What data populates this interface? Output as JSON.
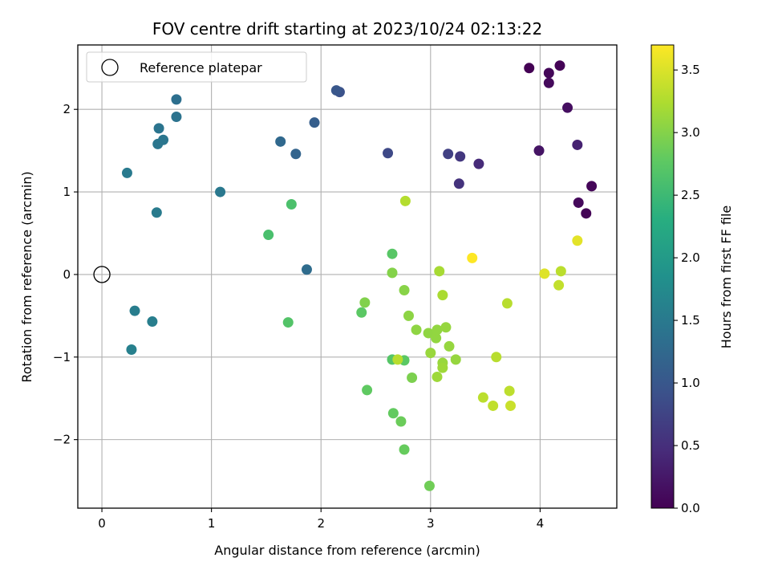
{
  "chart_data": {
    "type": "scatter",
    "title": "FOV centre drift starting at 2023/10/24 02:13:22",
    "xlabel": "Angular distance from reference (arcmin)",
    "ylabel": "Rotation from reference (arcmin)",
    "xlim": [
      -0.22,
      4.7
    ],
    "ylim": [
      -2.83,
      2.78
    ],
    "xticks": [
      0,
      1,
      2,
      3,
      4
    ],
    "yticks": [
      -2,
      -1,
      0,
      1,
      2
    ],
    "grid": true,
    "legend": {
      "position": "upper-left",
      "entries": [
        {
          "label": "Reference platepar",
          "marker": "open-circle",
          "x": 0,
          "y": 0
        }
      ]
    },
    "colorbar": {
      "label": "Hours from first FF file",
      "colormap": "viridis",
      "range": [
        0.0,
        3.7
      ],
      "ticks": [
        0.0,
        0.5,
        1.0,
        1.5,
        2.0,
        2.5,
        3.0,
        3.5
      ]
    },
    "points": [
      {
        "x": 3.9,
        "y": 2.5,
        "h": 0.0
      },
      {
        "x": 4.18,
        "y": 2.53,
        "h": 0.02
      },
      {
        "x": 4.08,
        "y": 2.44,
        "h": 0.06
      },
      {
        "x": 4.08,
        "y": 2.32,
        "h": 0.1
      },
      {
        "x": 4.25,
        "y": 2.02,
        "h": 0.14
      },
      {
        "x": 4.47,
        "y": 1.07,
        "h": 0.05
      },
      {
        "x": 4.42,
        "y": 0.74,
        "h": 0.03
      },
      {
        "x": 4.35,
        "y": 0.87,
        "h": 0.09
      },
      {
        "x": 3.99,
        "y": 1.5,
        "h": 0.2
      },
      {
        "x": 4.34,
        "y": 1.57,
        "h": 0.35
      },
      {
        "x": 3.44,
        "y": 1.34,
        "h": 0.45
      },
      {
        "x": 3.26,
        "y": 1.1,
        "h": 0.55
      },
      {
        "x": 3.27,
        "y": 1.43,
        "h": 0.6
      },
      {
        "x": 3.16,
        "y": 1.46,
        "h": 0.7
      },
      {
        "x": 2.61,
        "y": 1.47,
        "h": 0.82
      },
      {
        "x": 2.17,
        "y": 2.21,
        "h": 0.92
      },
      {
        "x": 2.14,
        "y": 2.23,
        "h": 1.0
      },
      {
        "x": 1.94,
        "y": 1.84,
        "h": 1.1
      },
      {
        "x": 1.77,
        "y": 1.46,
        "h": 1.18
      },
      {
        "x": 1.63,
        "y": 1.61,
        "h": 1.25
      },
      {
        "x": 1.87,
        "y": 0.06,
        "h": 1.3
      },
      {
        "x": 0.68,
        "y": 2.12,
        "h": 1.35
      },
      {
        "x": 0.68,
        "y": 1.91,
        "h": 1.4
      },
      {
        "x": 0.52,
        "y": 1.77,
        "h": 1.42
      },
      {
        "x": 0.56,
        "y": 1.63,
        "h": 1.45
      },
      {
        "x": 0.51,
        "y": 1.58,
        "h": 1.45
      },
      {
        "x": 0.23,
        "y": 1.23,
        "h": 1.5
      },
      {
        "x": 1.08,
        "y": 1.0,
        "h": 1.48
      },
      {
        "x": 0.5,
        "y": 0.75,
        "h": 1.52
      },
      {
        "x": 0.3,
        "y": -0.44,
        "h": 1.55
      },
      {
        "x": 0.46,
        "y": -0.57,
        "h": 1.57
      },
      {
        "x": 0.27,
        "y": -0.91,
        "h": 1.6
      },
      {
        "x": 1.52,
        "y": 0.48,
        "h": 2.6
      },
      {
        "x": 1.73,
        "y": 0.85,
        "h": 2.62
      },
      {
        "x": 1.7,
        "y": -0.58,
        "h": 2.68
      },
      {
        "x": 2.65,
        "y": 0.25,
        "h": 2.72
      },
      {
        "x": 2.37,
        "y": -0.46,
        "h": 2.75
      },
      {
        "x": 2.42,
        "y": -1.4,
        "h": 2.78
      },
      {
        "x": 2.66,
        "y": -1.68,
        "h": 2.8
      },
      {
        "x": 2.73,
        "y": -1.78,
        "h": 2.85
      },
      {
        "x": 2.76,
        "y": -2.12,
        "h": 2.82
      },
      {
        "x": 2.99,
        "y": -2.56,
        "h": 2.88
      },
      {
        "x": 2.65,
        "y": -1.03,
        "h": 2.7
      },
      {
        "x": 2.76,
        "y": -1.04,
        "h": 2.75
      },
      {
        "x": 2.83,
        "y": -1.25,
        "h": 2.95
      },
      {
        "x": 2.4,
        "y": -0.34,
        "h": 2.98
      },
      {
        "x": 2.65,
        "y": 0.02,
        "h": 3.0
      },
      {
        "x": 2.76,
        "y": -0.19,
        "h": 3.02
      },
      {
        "x": 2.8,
        "y": -0.5,
        "h": 3.05
      },
      {
        "x": 2.87,
        "y": -0.67,
        "h": 3.06
      },
      {
        "x": 2.98,
        "y": -0.71,
        "h": 3.07
      },
      {
        "x": 3.05,
        "y": -0.77,
        "h": 3.08
      },
      {
        "x": 3.06,
        "y": -0.67,
        "h": 3.08
      },
      {
        "x": 3.14,
        "y": -0.64,
        "h": 3.1
      },
      {
        "x": 3.17,
        "y": -0.87,
        "h": 3.1
      },
      {
        "x": 3.0,
        "y": -0.95,
        "h": 3.12
      },
      {
        "x": 3.11,
        "y": -1.07,
        "h": 3.12
      },
      {
        "x": 3.11,
        "y": -1.13,
        "h": 3.15
      },
      {
        "x": 3.06,
        "y": -1.24,
        "h": 3.15
      },
      {
        "x": 2.7,
        "y": -1.03,
        "h": 3.3
      },
      {
        "x": 3.23,
        "y": -1.03,
        "h": 3.1
      },
      {
        "x": 3.08,
        "y": 0.04,
        "h": 3.2
      },
      {
        "x": 3.11,
        "y": -0.25,
        "h": 3.22
      },
      {
        "x": 2.77,
        "y": 0.89,
        "h": 3.28
      },
      {
        "x": 3.6,
        "y": -1.0,
        "h": 3.3
      },
      {
        "x": 3.48,
        "y": -1.49,
        "h": 3.32
      },
      {
        "x": 3.57,
        "y": -1.59,
        "h": 3.35
      },
      {
        "x": 3.72,
        "y": -1.41,
        "h": 3.33
      },
      {
        "x": 3.73,
        "y": -1.59,
        "h": 3.4
      },
      {
        "x": 3.7,
        "y": -0.35,
        "h": 3.3
      },
      {
        "x": 4.19,
        "y": 0.04,
        "h": 3.32
      },
      {
        "x": 4.17,
        "y": -0.13,
        "h": 3.36
      },
      {
        "x": 4.04,
        "y": 0.01,
        "h": 3.52
      },
      {
        "x": 4.34,
        "y": 0.41,
        "h": 3.55
      },
      {
        "x": 3.38,
        "y": 0.2,
        "h": 3.7
      }
    ]
  }
}
